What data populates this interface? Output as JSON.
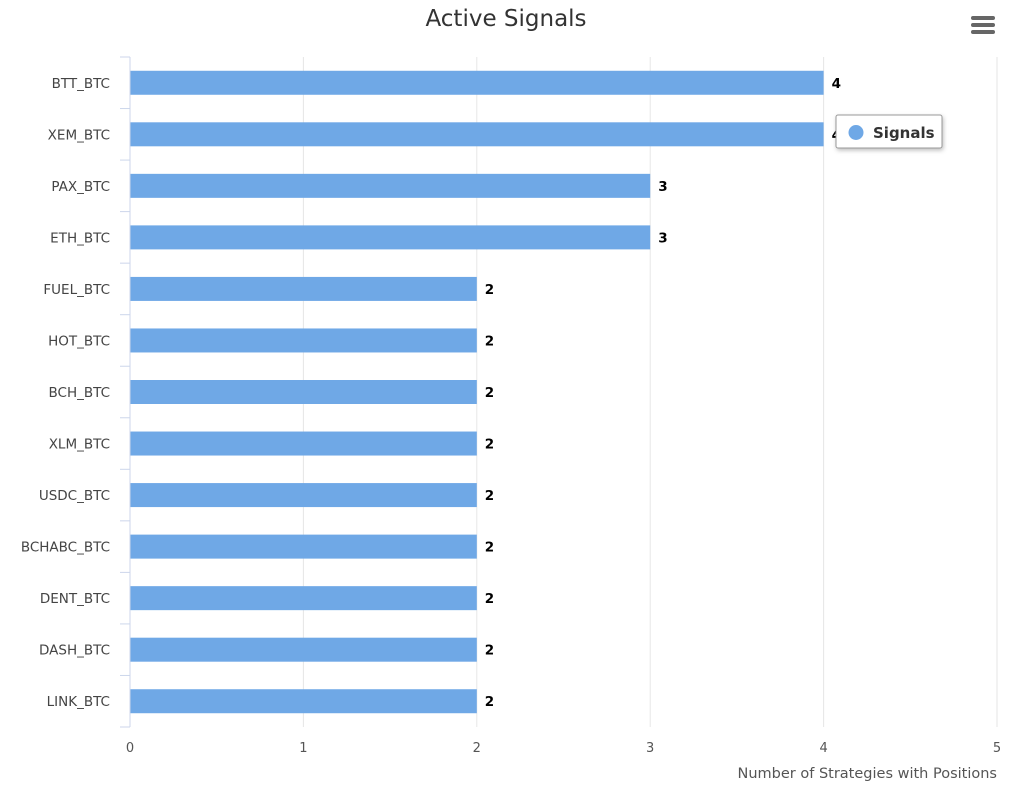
{
  "chart_data": {
    "type": "bar",
    "orientation": "horizontal",
    "title": "Active Signals",
    "categories": [
      "BTT_BTC",
      "XEM_BTC",
      "PAX_BTC",
      "ETH_BTC",
      "FUEL_BTC",
      "HOT_BTC",
      "BCH_BTC",
      "XLM_BTC",
      "USDC_BTC",
      "BCHABC_BTC",
      "DENT_BTC",
      "DASH_BTC",
      "LINK_BTC"
    ],
    "series": [
      {
        "name": "Signals",
        "values": [
          4,
          4,
          3,
          3,
          2,
          2,
          2,
          2,
          2,
          2,
          2,
          2,
          2
        ]
      }
    ],
    "xlabel": "Number of Strategies with Positions",
    "ylabel": "",
    "xlim": [
      0,
      5
    ],
    "ticks": [
      "0",
      "1",
      "2",
      "3",
      "4",
      "5"
    ],
    "grid": true,
    "data_labels": true,
    "legend_position": "top-right",
    "colors": {
      "bar": "#6fa8e6",
      "grid": "#e6e6e6",
      "axis": "#ccd6eb"
    }
  },
  "menu": {
    "icon": "hamburger-menu-icon"
  }
}
